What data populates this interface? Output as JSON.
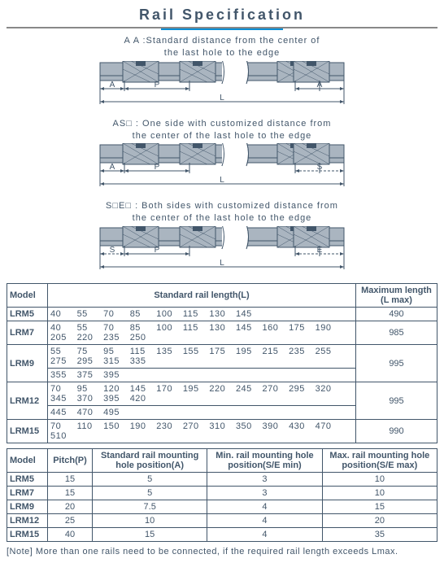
{
  "title": "Rail Specification",
  "diagrams": [
    {
      "code": "AA",
      "desc1": "A A :Standard distance from the center of",
      "desc2": "the last hole to the edge",
      "left_label": "A",
      "right_label": "A",
      "mid_label": "P",
      "bottom_label": "L",
      "left_dashed": false,
      "right_dashed": false
    },
    {
      "code": "AS",
      "desc1": "AS□ : One side with customized distance from",
      "desc2": "the center of the last hole to the edge",
      "left_label": "A",
      "right_label": "S",
      "mid_label": "P",
      "bottom_label": "L",
      "left_dashed": false,
      "right_dashed": true
    },
    {
      "code": "SE",
      "desc1": "S□E□ : Both sides with customized distance from",
      "desc2": "the center of the last hole to the edge",
      "left_label": "S",
      "right_label": "E",
      "mid_label": "P",
      "bottom_label": "L",
      "left_dashed": true,
      "right_dashed": true
    }
  ],
  "rail_style": {
    "fill": "#aab5c0",
    "stroke": "#42566a",
    "hatch": "#42566a",
    "break_fill": "#ffffff"
  },
  "table1": {
    "headers": {
      "model": "Model",
      "std": "Standard rail length(L)",
      "max": "Maximum length (L max)"
    },
    "rows": [
      {
        "model": "LRM5",
        "lengths": [
          "40",
          "55",
          "70",
          "85",
          "100",
          "115",
          "130",
          "145"
        ],
        "max": "490"
      },
      {
        "model": "LRM7",
        "lengths": [
          "40",
          "55",
          "70",
          "85",
          "100",
          "115",
          "130",
          "145",
          "160",
          "175",
          "190",
          "205",
          "220",
          "235",
          "250"
        ],
        "max": "985"
      },
      {
        "model": "LRM9",
        "lengths": [
          "55",
          "75",
          "95",
          "115",
          "135",
          "155",
          "175",
          "195",
          "215",
          "235",
          "255",
          "275",
          "295",
          "315",
          "335",
          "355",
          "375",
          "395"
        ],
        "max": "995"
      },
      {
        "model": "LRM12",
        "lengths": [
          "70",
          "95",
          "120",
          "145",
          "170",
          "195",
          "220",
          "245",
          "270",
          "295",
          "320",
          "345",
          "370",
          "395",
          "420",
          "445",
          "470",
          "495"
        ],
        "max": "995"
      },
      {
        "model": "LRM15",
        "lengths": [
          "70",
          "110",
          "150",
          "190",
          "230",
          "270",
          "310",
          "350",
          "390",
          "430",
          "470",
          "510"
        ],
        "max": "990"
      }
    ]
  },
  "table2": {
    "headers": {
      "model": "Model",
      "pitch": "Pitch(P)",
      "std_a": "Standard rail mounting hole position(A)",
      "min_se": "Min. rail mounting hole position(S/E min)",
      "max_se": "Max. rail mounting hole position(S/E max)"
    },
    "rows": [
      {
        "model": "LRM5",
        "pitch": "15",
        "a": "5",
        "min": "3",
        "max": "10"
      },
      {
        "model": "LRM7",
        "pitch": "15",
        "a": "5",
        "min": "3",
        "max": "10"
      },
      {
        "model": "LRM9",
        "pitch": "20",
        "a": "7.5",
        "min": "4",
        "max": "15"
      },
      {
        "model": "LRM12",
        "pitch": "25",
        "a": "10",
        "min": "4",
        "max": "20"
      },
      {
        "model": "LRM15",
        "pitch": "40",
        "a": "15",
        "min": "4",
        "max": "35"
      }
    ]
  },
  "note": "[Note] More than one rails need to be connected, if the required rail length exceeds Lmax."
}
